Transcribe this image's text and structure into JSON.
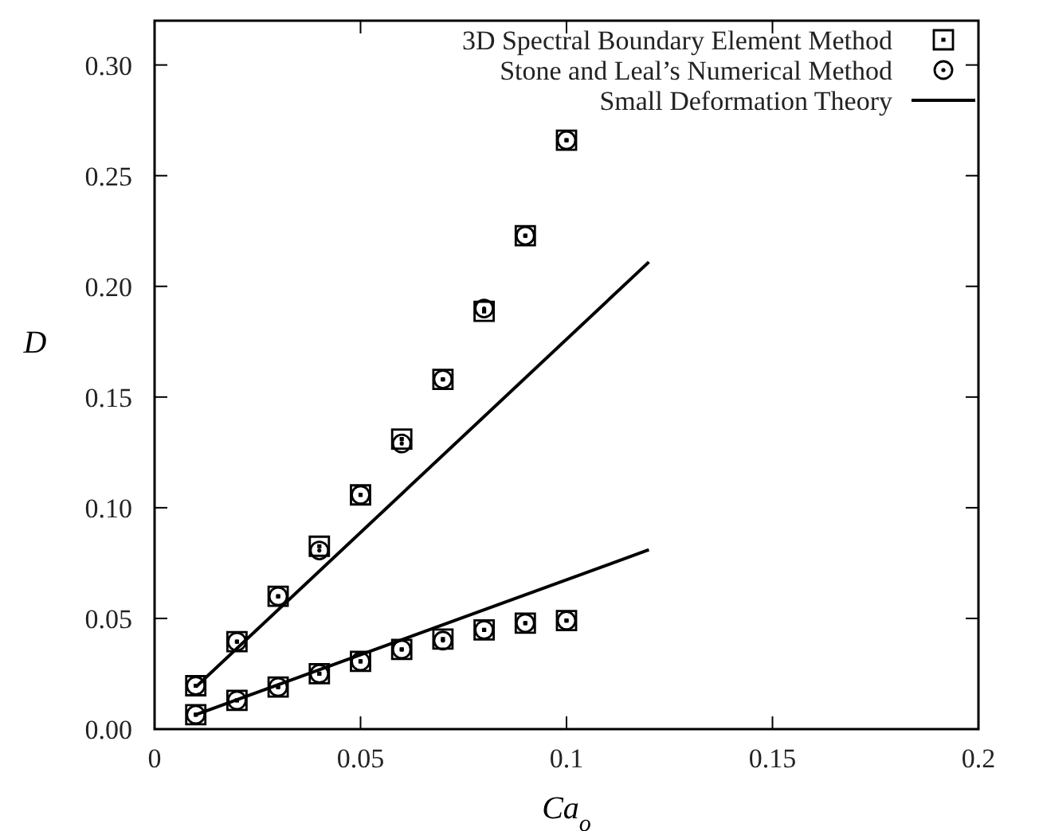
{
  "chart_data": {
    "type": "scatter",
    "xlabel": "Ca$_{o}$",
    "ylabel": "D",
    "xlim": [
      0,
      0.2
    ],
    "ylim": [
      0,
      0.32
    ],
    "xticks": [
      0,
      0.05,
      0.1,
      0.15,
      0.2
    ],
    "yticks": [
      {
        "value": 0,
        "label": "0.00"
      },
      {
        "value": 0.05,
        "label": "0.05"
      },
      {
        "value": 0.1,
        "label": "0.10"
      },
      {
        "value": 0.15,
        "label": "0.15"
      },
      {
        "value": 0.2,
        "label": "0.20"
      },
      {
        "value": 0.25,
        "label": "0.25"
      },
      {
        "value": 0.3,
        "label": "0.30"
      }
    ],
    "legend": "top right",
    "grid": false,
    "series": [
      {
        "name": "3D Spectral Boundary Element Method",
        "marker": "square",
        "color": "#000000",
        "x": [
          0.01,
          0.02,
          0.03,
          0.04,
          0.05,
          0.06,
          0.07,
          0.08,
          0.09,
          0.1,
          0.01,
          0.02,
          0.03,
          0.04,
          0.05,
          0.06,
          0.07,
          0.08,
          0.09,
          0.1
        ],
        "values": [
          0.0196,
          0.0395,
          0.06,
          0.0826,
          0.1058,
          0.131,
          0.158,
          0.1887,
          0.2229,
          0.266,
          0.0065,
          0.013,
          0.019,
          0.025,
          0.0306,
          0.036,
          0.0407,
          0.0448,
          0.0479,
          0.049
        ]
      },
      {
        "name": "Stone and Leal’s Numerical Method",
        "marker": "circle",
        "color": "#000000",
        "x": [
          0.01,
          0.02,
          0.03,
          0.04,
          0.05,
          0.06,
          0.07,
          0.08,
          0.09,
          0.1,
          0.01,
          0.02,
          0.03,
          0.04,
          0.05,
          0.06,
          0.07,
          0.08,
          0.09,
          0.1
        ],
        "values": [
          0.0196,
          0.0395,
          0.06,
          0.0807,
          0.1058,
          0.129,
          0.158,
          0.19,
          0.2229,
          0.266,
          0.0065,
          0.013,
          0.019,
          0.025,
          0.0306,
          0.036,
          0.04,
          0.0448,
          0.0479,
          0.049
        ]
      },
      {
        "name": "Small Deformation Theory",
        "type": "line",
        "marker": "none",
        "line_style": "solid",
        "color": "#000000",
        "x": [
          0.01,
          0.12
        ],
        "values": [
          0.019,
          0.211
        ]
      },
      {
        "type": "line",
        "marker": "none",
        "line_style": "solid",
        "color": "#000000",
        "x": [
          0.01,
          0.12
        ],
        "values": [
          0.0065,
          0.081
        ]
      }
    ]
  }
}
